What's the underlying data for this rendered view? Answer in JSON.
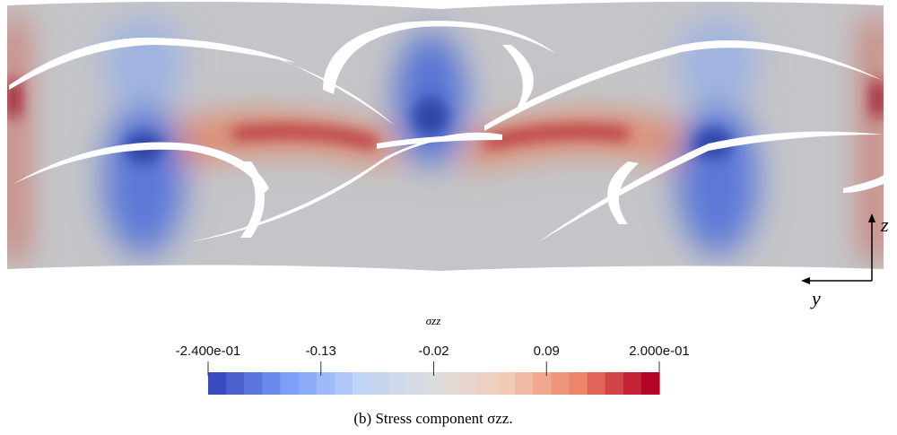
{
  "figure": {
    "axes": {
      "vertical": "z",
      "horizontal": "y"
    },
    "colorbar": {
      "title": "σzz",
      "lim": [
        -0.24,
        0.2
      ],
      "ticks": [
        {
          "value": -0.24,
          "label": "-2.400e-01"
        },
        -0.13,
        -0.02,
        0.09,
        {
          "value": 0.2,
          "label": "2.000e-01"
        }
      ]
    },
    "caption": "(b) Stress component σzz."
  }
}
